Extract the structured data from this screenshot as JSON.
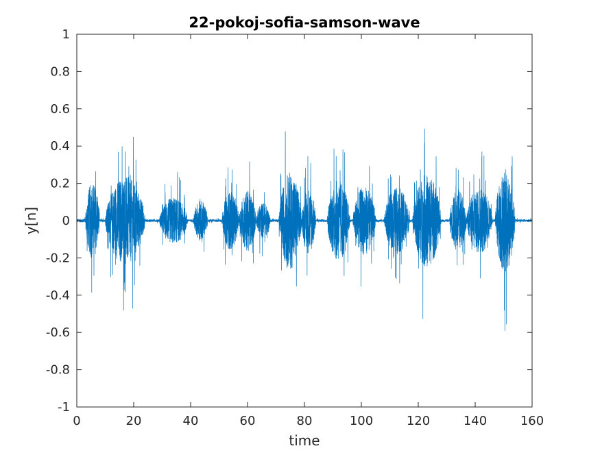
{
  "chart_data": {
    "type": "line",
    "title": "22-pokoj-sofia-samson-wave",
    "xlabel": "time",
    "ylabel": "y[n]",
    "xlim": [
      0,
      160
    ],
    "ylim": [
      -1,
      1
    ],
    "xticks": [
      "0",
      "20",
      "40",
      "60",
      "80",
      "100",
      "120",
      "140",
      "160"
    ],
    "yticks": [
      "-1",
      "-0.8",
      "-0.6",
      "-0.4",
      "-0.2",
      "0",
      "0.2",
      "0.4",
      "0.6",
      "0.8",
      "1"
    ],
    "grid": false,
    "legend": "none",
    "series": [
      {
        "color": "#0072BD",
        "duration": 160,
        "segments": [
          {
            "start": 0.0,
            "end": 3.0,
            "peak": 0.02
          },
          {
            "start": 3.0,
            "end": 8.0,
            "peak": 0.46
          },
          {
            "start": 10.0,
            "end": 24.0,
            "peak": 0.53
          },
          {
            "start": 29.0,
            "end": 39.0,
            "peak": 0.28
          },
          {
            "start": 41.0,
            "end": 46.0,
            "peak": 0.26
          },
          {
            "start": 51.0,
            "end": 57.0,
            "peak": 0.35
          },
          {
            "start": 57.0,
            "end": 63.0,
            "peak": 0.37
          },
          {
            "start": 63.0,
            "end": 68.0,
            "peak": 0.22
          },
          {
            "start": 71.0,
            "end": 79.0,
            "peak": 0.58
          },
          {
            "start": 79.0,
            "end": 84.0,
            "peak": 0.4
          },
          {
            "start": 88.0,
            "end": 96.0,
            "peak": 0.49
          },
          {
            "start": 97.0,
            "end": 105.0,
            "peak": 0.41
          },
          {
            "start": 108.0,
            "end": 117.0,
            "peak": 0.4
          },
          {
            "start": 118.0,
            "end": 128.0,
            "peak": 0.56
          },
          {
            "start": 131.0,
            "end": 137.0,
            "peak": 0.38
          },
          {
            "start": 137.0,
            "end": 146.0,
            "peak": 0.4
          },
          {
            "start": 147.0,
            "end": 154.0,
            "peak": 0.62
          }
        ]
      }
    ]
  }
}
